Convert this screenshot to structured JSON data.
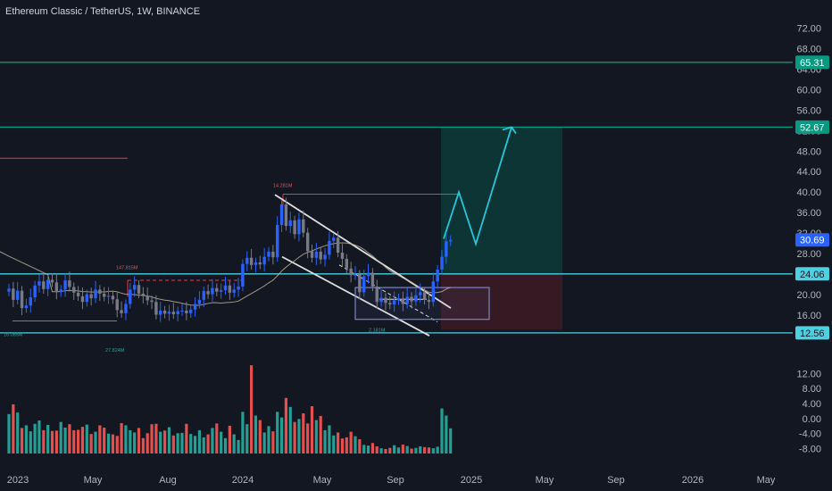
{
  "header": {
    "title": "Ethereum Classic / TetherUS, 1W, BINANCE"
  },
  "colors": {
    "background": "#131722",
    "up": "#2962ff",
    "down": "#787b86",
    "level_line": "#4dd0e1",
    "green_line": "#089981",
    "red_line": "#f23645",
    "ma_line": "#c8b89a",
    "target_zone": "#0d3b38",
    "stop_zone": "#3a1b24",
    "projection": "#26c6da",
    "channel": "#e0e0e0",
    "vol_up": "#26a69a",
    "vol_down": "#ef5350",
    "price_badge": "#2962ff"
  },
  "chart_data": [
    {
      "type": "candlestick",
      "price_axis": {
        "ticks": [
          "72.00",
          "68.00",
          "64.00",
          "60.00",
          "56.00",
          "52.00",
          "48.00",
          "44.00",
          "40.00",
          "36.00",
          "32.00",
          "28.00",
          "24.00",
          "20.00",
          "16.00",
          "12.00"
        ],
        "ylim": [
          10.8,
          74.5
        ]
      },
      "time_axis": {
        "ticks": [
          "2023",
          "May",
          "Aug",
          "2024",
          "May",
          "Sep",
          "2025",
          "May",
          "Sep",
          "2026",
          "May"
        ]
      },
      "badges": [
        {
          "value": "65.31",
          "color": "#089981"
        },
        {
          "value": "52.67",
          "color": "#089981"
        },
        {
          "value": "30.69",
          "color": "#2962ff"
        },
        {
          "value": "24.06",
          "color": "#4dd0e1"
        },
        {
          "value": "12.56",
          "color": "#4dd0e1"
        }
      ],
      "horizontal_levels": [
        {
          "name": "resistance-65",
          "value": 65.31
        },
        {
          "name": "resistance-52",
          "value": 52.67
        },
        {
          "name": "support-24",
          "value": 24.06
        },
        {
          "name": "support-12",
          "value": 12.56
        }
      ],
      "annotations": [
        "14.281M",
        "147.815M",
        "16.085M",
        "27.824M",
        "2.181M"
      ],
      "candles_close": [
        21.2,
        19.0,
        20.8,
        17.4,
        17.9,
        19.5,
        21.8,
        22.6,
        21.1,
        22.9,
        22.4,
        20.5,
        21.0,
        22.8,
        21.5,
        20.4,
        19.7,
        18.6,
        20.1,
        19.3,
        21.0,
        20.2,
        19.6,
        19.8,
        19.1,
        17.0,
        16.4,
        18.2,
        21.0,
        21.9,
        20.2,
        19.7,
        18.9,
        18.6,
        16.1,
        16.9,
        16.3,
        16.7,
        16.2,
        16.8,
        16.9,
        16.4,
        17.1,
        18.2,
        19.0,
        20.7,
        20.1,
        21.3,
        20.6,
        20.9,
        21.8,
        20.4,
        21.0,
        21.6,
        26.0,
        27.2,
        25.8,
        26.3,
        25.9,
        27.4,
        28.4,
        27.3,
        33.6,
        37.6,
        33.4,
        34.5,
        31.8,
        34.7,
        32.1,
        28.5,
        27.2,
        28.4,
        26.9,
        27.8,
        30.5,
        31.1,
        28.2,
        27.0,
        25.1,
        23.8,
        23.9,
        20.5,
        23.6,
        24.3,
        21.6,
        18.6,
        19.4,
        18.4,
        18.1,
        18.9,
        19.3,
        18.2,
        19.6,
        18.7,
        19.9,
        20.5,
        19.0,
        18.6,
        22.6,
        24.9,
        27.4,
        30.4,
        30.69
      ],
      "forecast_path": [
        [
          40.0
        ],
        [
          29.9
        ],
        [
          52.67
        ]
      ],
      "target_zone": [
        24.06,
        52.67
      ],
      "stop_zone": [
        13.2,
        24.06
      ]
    },
    {
      "type": "bar",
      "name": "volume-oscillator",
      "ticks": [
        "12.00",
        "8.00",
        "4.00",
        "0.00",
        "-4.00",
        "-8.00"
      ],
      "ylim": [
        -9.3,
        14.0
      ],
      "values": [
        1.2,
        3.8,
        1.6,
        -2.5,
        -1.8,
        -3.4,
        -1.4,
        -0.5,
        -3.1,
        -1.7,
        -3.3,
        -3.2,
        -0.9,
        -2.4,
        -1.5,
        -3.1,
        -3.0,
        -2.2,
        -1.6,
        -4.1,
        -3.5,
        -1.8,
        -2.4,
        -4.0,
        -4.2,
        -4.6,
        -1.2,
        -1.8,
        -3.1,
        -3.7,
        -2.5,
        -5.2,
        -3.9,
        -1.5,
        -1.4,
        -3.5,
        -3.2,
        -2.3,
        -4.5,
        -3.9,
        -3.8,
        -1.4,
        -4.1,
        -4.6,
        -3.1,
        -5.0,
        -4.2,
        -2.5,
        -1.3,
        -3.5,
        -5.2,
        -1.9,
        -4.2,
        -5.7,
        1.8,
        -1.5,
        14.2,
        0.8,
        -0.4,
        -3.7,
        -2.0,
        -3.4,
        1.8,
        0.3,
        5.5,
        3.1,
        -0.9,
        -0.1,
        1.4,
        -1.3,
        3.3,
        -0.4,
        0.7,
        -3.1,
        -1.8,
        -4.5,
        -3.7,
        -5.3,
        -5.0,
        -3.5,
        -4.7,
        -5.5,
        -7.0,
        -7.2,
        -6.5,
        -7.4,
        -7.9,
        -8.1,
        -7.8,
        -7.1,
        -7.7,
        -6.9,
        -7.3,
        -8.0,
        -7.8,
        -7.4,
        -7.6,
        -7.7,
        -7.9,
        -7.5,
        2.7,
        0.8,
        -2.6
      ]
    }
  ]
}
